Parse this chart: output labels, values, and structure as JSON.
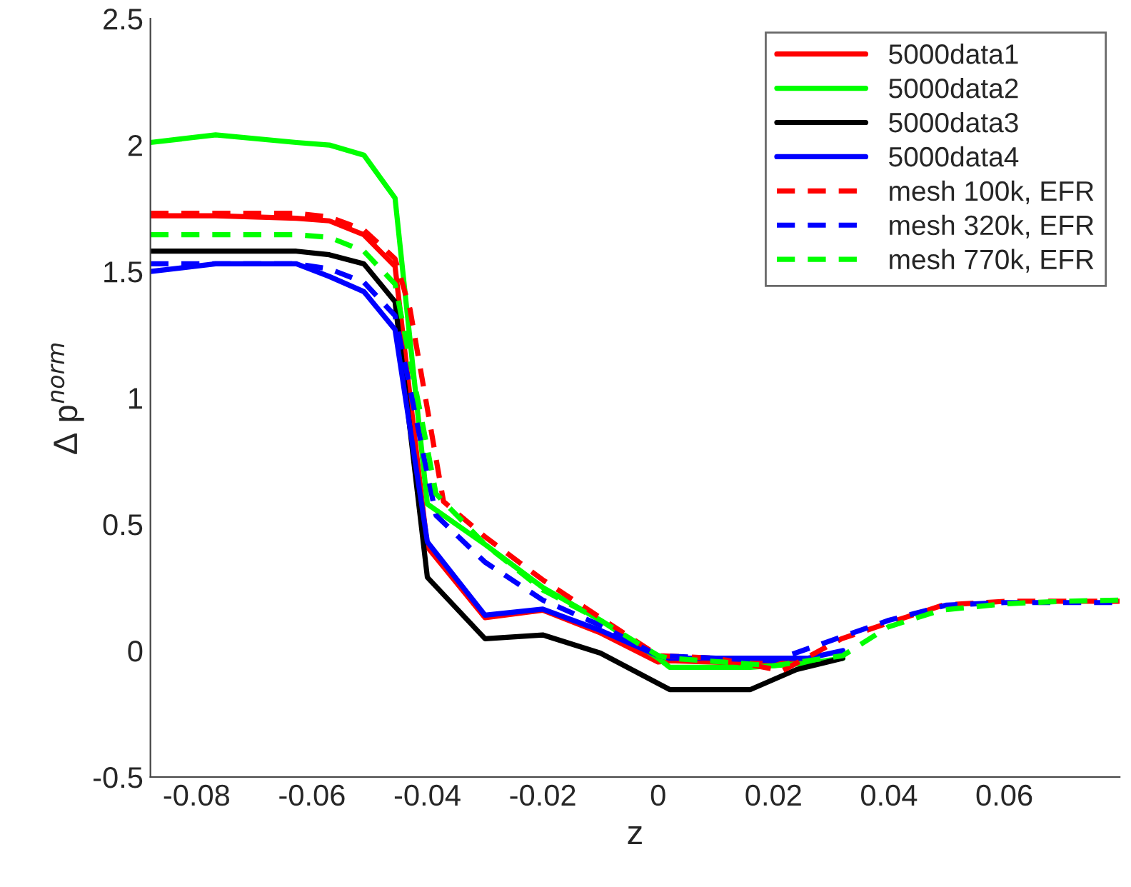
{
  "chart_data": {
    "type": "line",
    "xlabel": "z",
    "ylabel": "Δ p$^{norm}$",
    "xlim": [
      -0.088,
      0.08
    ],
    "ylim": [
      -0.5,
      2.5
    ],
    "xticks": [
      -0.08,
      -0.06,
      -0.04,
      -0.02,
      0,
      0.02,
      0.04,
      0.06
    ],
    "yticks": [
      -0.5,
      0,
      0.5,
      1,
      1.5,
      2,
      2.5
    ],
    "grid": false,
    "legend": "top right",
    "marker": "none",
    "series": [
      {
        "name": "5000data1",
        "color": "#ff0000",
        "line_style": "solid",
        "x": [
          -0.088,
          -0.0767,
          -0.0627,
          -0.057,
          -0.051,
          -0.0456,
          -0.04,
          -0.03,
          -0.02,
          -0.01,
          0,
          0.002,
          0.016,
          0.026
        ],
        "values": [
          1.72,
          1.72,
          1.71,
          1.7,
          1.645,
          1.52,
          0.41,
          0.13,
          0.16,
          0.07,
          -0.045,
          -0.04,
          -0.05,
          -0.04
        ]
      },
      {
        "name": "5000data2",
        "color": "#00ff00",
        "line_style": "solid",
        "x": [
          -0.088,
          -0.0767,
          -0.0627,
          -0.057,
          -0.051,
          -0.0456,
          -0.04,
          -0.03,
          -0.02,
          -0.01,
          0,
          0.002,
          0.016,
          0.026,
          0.032
        ],
        "values": [
          2.01,
          2.04,
          2.01,
          2.0,
          1.96,
          1.79,
          0.58,
          0.42,
          0.25,
          0.12,
          -0.03,
          -0.066,
          -0.066,
          -0.05,
          -0.03
        ]
      },
      {
        "name": "5000data3",
        "color": "#000000",
        "line_style": "solid",
        "x": [
          -0.088,
          -0.0767,
          -0.0627,
          -0.057,
          -0.051,
          -0.0456,
          -0.04,
          -0.03,
          -0.02,
          -0.01,
          0,
          0.002,
          0.016,
          0.024,
          0.032
        ],
        "values": [
          1.58,
          1.58,
          1.58,
          1.566,
          1.53,
          1.38,
          0.29,
          0.047,
          0.062,
          -0.01,
          -0.13,
          -0.154,
          -0.154,
          -0.075,
          -0.03
        ]
      },
      {
        "name": "5000data4",
        "color": "#0000ff",
        "line_style": "solid",
        "x": [
          -0.088,
          -0.0767,
          -0.0627,
          -0.057,
          -0.051,
          -0.0456,
          -0.04,
          -0.03,
          -0.02,
          -0.01,
          0,
          0.002,
          0.016,
          0.026,
          0.032
        ],
        "values": [
          1.5,
          1.53,
          1.53,
          1.48,
          1.42,
          1.27,
          0.43,
          0.14,
          0.164,
          0.08,
          -0.02,
          -0.03,
          -0.03,
          -0.03,
          0.0
        ]
      },
      {
        "name": "mesh 100k, EFR",
        "color": "#ff0000",
        "line_style": "dashed",
        "x": [
          -0.088,
          -0.0627,
          -0.057,
          -0.051,
          -0.0456,
          -0.043,
          -0.0372,
          -0.03,
          -0.02,
          -0.01,
          0,
          0.01,
          0.0215,
          0.0318,
          0.04,
          0.0494,
          0.06,
          0.07,
          0.08
        ],
        "values": [
          1.73,
          1.73,
          1.715,
          1.664,
          1.55,
          1.35,
          0.59,
          0.45,
          0.28,
          0.13,
          -0.02,
          -0.03,
          -0.08,
          0.047,
          0.11,
          0.18,
          0.195,
          0.195,
          0.195
        ]
      },
      {
        "name": "mesh 320k, EFR",
        "color": "#0000ff",
        "line_style": "dashed",
        "x": [
          -0.088,
          -0.0627,
          -0.057,
          -0.051,
          -0.0456,
          -0.04,
          -0.0385,
          -0.03,
          -0.02,
          -0.01,
          0,
          0.01,
          0.02,
          0.03,
          0.04,
          0.05,
          0.06,
          0.07,
          0.08
        ],
        "values": [
          1.53,
          1.53,
          1.51,
          1.457,
          1.325,
          0.7,
          0.535,
          0.35,
          0.2,
          0.1,
          -0.02,
          -0.03,
          -0.04,
          0.04,
          0.12,
          0.18,
          0.19,
          0.19,
          0.19
        ]
      },
      {
        "name": "mesh 770k, EFR",
        "color": "#00ff00",
        "line_style": "dashed",
        "x": [
          -0.088,
          -0.0627,
          -0.057,
          -0.051,
          -0.0456,
          -0.04,
          -0.0385,
          -0.03,
          -0.02,
          -0.01,
          0,
          0.002,
          0.02,
          0.032,
          0.0399,
          0.049,
          0.06,
          0.07,
          0.08
        ],
        "values": [
          1.645,
          1.645,
          1.635,
          1.58,
          1.45,
          0.8,
          0.62,
          0.42,
          0.24,
          0.12,
          -0.02,
          -0.03,
          -0.06,
          -0.02,
          0.094,
          0.16,
          0.185,
          0.195,
          0.2
        ]
      }
    ]
  }
}
